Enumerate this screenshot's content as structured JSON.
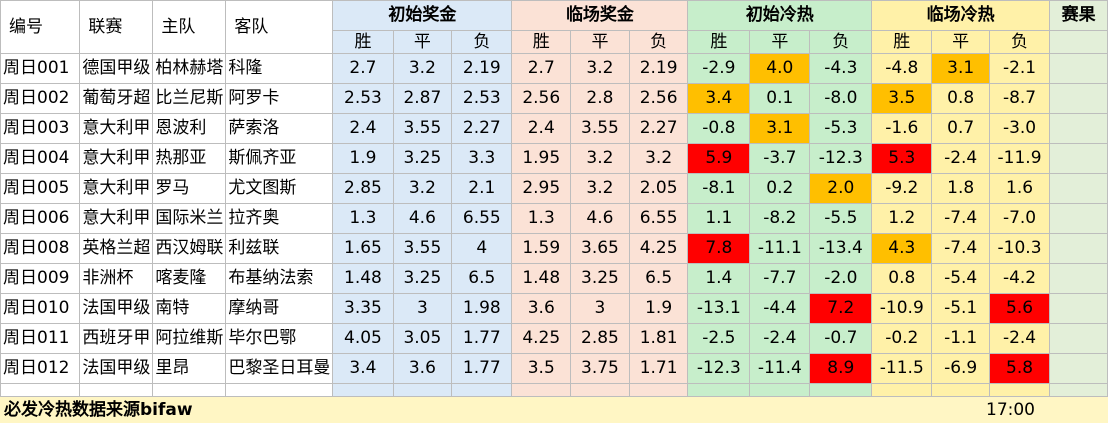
{
  "headers": {
    "id": "编号",
    "league": "联赛",
    "home": "主队",
    "away": "客队",
    "initial_odds": "初始奖金",
    "live_odds": "临场奖金",
    "initial_heat": "初始冷热",
    "live_heat": "临场冷热",
    "result": "赛果",
    "win": "胜",
    "draw": "平",
    "lose": "负"
  },
  "colors": {
    "odds_bg": "#dbe9f7",
    "live_bg": "#fbe2d6",
    "init_heat_bg": "#c7eecb",
    "live_heat_bg": "#fff1a8",
    "highlight_orange": "#ffbf00",
    "highlight_red": "#ff0000"
  },
  "rows": [
    {
      "id": "周日001",
      "league": "德国甲级",
      "home": "柏林赫塔",
      "away": "科隆",
      "io": [
        "2.7",
        "3.2",
        "2.19"
      ],
      "lo": [
        "2.7",
        "3.2",
        "2.19"
      ],
      "ih": [
        "-2.9",
        "4.0",
        "-4.3"
      ],
      "lh": [
        "-4.8",
        "3.1",
        "-2.1"
      ],
      "ihc": [
        "",
        "o",
        ""
      ],
      "lhc": [
        "",
        "o",
        ""
      ],
      "result": ""
    },
    {
      "id": "周日002",
      "league": "葡萄牙超",
      "home": "比兰尼斯",
      "away": "阿罗卡",
      "io": [
        "2.53",
        "2.87",
        "2.53"
      ],
      "lo": [
        "2.56",
        "2.8",
        "2.56"
      ],
      "ih": [
        "3.4",
        "0.1",
        "-8.0"
      ],
      "lh": [
        "3.5",
        "0.8",
        "-8.7"
      ],
      "ihc": [
        "o",
        "",
        ""
      ],
      "lhc": [
        "o",
        "",
        ""
      ],
      "result": ""
    },
    {
      "id": "周日003",
      "league": "意大利甲",
      "home": "恩波利",
      "away": "萨索洛",
      "io": [
        "2.4",
        "3.55",
        "2.27"
      ],
      "lo": [
        "2.4",
        "3.55",
        "2.27"
      ],
      "ih": [
        "-0.8",
        "3.1",
        "-5.3"
      ],
      "lh": [
        "-1.6",
        "0.7",
        "-3.0"
      ],
      "ihc": [
        "",
        "o",
        ""
      ],
      "lhc": [
        "",
        "",
        ""
      ],
      "result": ""
    },
    {
      "id": "周日004",
      "league": "意大利甲",
      "home": "热那亚",
      "away": "斯佩齐亚",
      "io": [
        "1.9",
        "3.25",
        "3.3"
      ],
      "lo": [
        "1.95",
        "3.2",
        "3.2"
      ],
      "ih": [
        "5.9",
        "-3.7",
        "-12.3"
      ],
      "lh": [
        "5.3",
        "-2.4",
        "-11.9"
      ],
      "ihc": [
        "r",
        "",
        ""
      ],
      "lhc": [
        "r",
        "",
        ""
      ],
      "result": ""
    },
    {
      "id": "周日005",
      "league": "意大利甲",
      "home": "罗马",
      "away": "尤文图斯",
      "io": [
        "2.85",
        "3.2",
        "2.1"
      ],
      "lo": [
        "2.95",
        "3.2",
        "2.05"
      ],
      "ih": [
        "-8.1",
        "0.2",
        "2.0"
      ],
      "lh": [
        "-9.2",
        "1.8",
        "1.6"
      ],
      "ihc": [
        "",
        "",
        "o"
      ],
      "lhc": [
        "",
        "",
        ""
      ],
      "result": ""
    },
    {
      "id": "周日006",
      "league": "意大利甲",
      "home": "国际米兰",
      "away": "拉齐奥",
      "io": [
        "1.3",
        "4.6",
        "6.55"
      ],
      "lo": [
        "1.3",
        "4.6",
        "6.55"
      ],
      "ih": [
        "1.1",
        "-8.2",
        "-5.5"
      ],
      "lh": [
        "1.2",
        "-7.4",
        "-7.0"
      ],
      "ihc": [
        "",
        "",
        ""
      ],
      "lhc": [
        "",
        "",
        ""
      ],
      "result": ""
    },
    {
      "id": "周日008",
      "league": "英格兰超",
      "home": "西汉姆联",
      "away": "利兹联",
      "io": [
        "1.65",
        "3.55",
        "4"
      ],
      "lo": [
        "1.59",
        "3.65",
        "4.25"
      ],
      "ih": [
        "7.8",
        "-11.1",
        "-13.4"
      ],
      "lh": [
        "4.3",
        "-7.4",
        "-10.3"
      ],
      "ihc": [
        "r",
        "",
        ""
      ],
      "lhc": [
        "o",
        "",
        ""
      ],
      "result": ""
    },
    {
      "id": "周日009",
      "league": "非洲杯",
      "home": "喀麦隆",
      "away": "布基纳法索",
      "io": [
        "1.48",
        "3.25",
        "6.5"
      ],
      "lo": [
        "1.48",
        "3.25",
        "6.5"
      ],
      "ih": [
        "1.4",
        "-7.7",
        "-2.0"
      ],
      "lh": [
        "0.8",
        "-5.4",
        "-4.2"
      ],
      "ihc": [
        "",
        "",
        ""
      ],
      "lhc": [
        "",
        "",
        ""
      ],
      "result": ""
    },
    {
      "id": "周日010",
      "league": "法国甲级",
      "home": "南特",
      "away": "摩纳哥",
      "io": [
        "3.35",
        "3",
        "1.98"
      ],
      "lo": [
        "3.6",
        "3",
        "1.9"
      ],
      "ih": [
        "-13.1",
        "-4.4",
        "7.2"
      ],
      "lh": [
        "-10.9",
        "-5.1",
        "5.6"
      ],
      "ihc": [
        "",
        "",
        "r"
      ],
      "lhc": [
        "",
        "",
        "r"
      ],
      "result": ""
    },
    {
      "id": "周日011",
      "league": "西班牙甲",
      "home": "阿拉维斯",
      "away": "毕尔巴鄂",
      "io": [
        "4.05",
        "3.05",
        "1.77"
      ],
      "lo": [
        "4.25",
        "2.85",
        "1.81"
      ],
      "ih": [
        "-2.5",
        "-2.4",
        "-0.7"
      ],
      "lh": [
        "-0.2",
        "-1.1",
        "-2.4"
      ],
      "ihc": [
        "",
        "",
        ""
      ],
      "lhc": [
        "",
        "",
        ""
      ],
      "result": ""
    },
    {
      "id": "周日012",
      "league": "法国甲级",
      "home": "里昂",
      "away": "巴黎圣日耳曼",
      "io": [
        "3.4",
        "3.6",
        "1.77"
      ],
      "lo": [
        "3.5",
        "3.75",
        "1.71"
      ],
      "ih": [
        "-12.3",
        "-11.4",
        "8.9"
      ],
      "lh": [
        "-11.5",
        "-6.9",
        "5.8"
      ],
      "ihc": [
        "",
        "",
        "r"
      ],
      "lhc": [
        "",
        "",
        "r"
      ],
      "result": ""
    }
  ],
  "footer": {
    "note": "必发冷热数据来源bifaw",
    "time": "17:00"
  }
}
